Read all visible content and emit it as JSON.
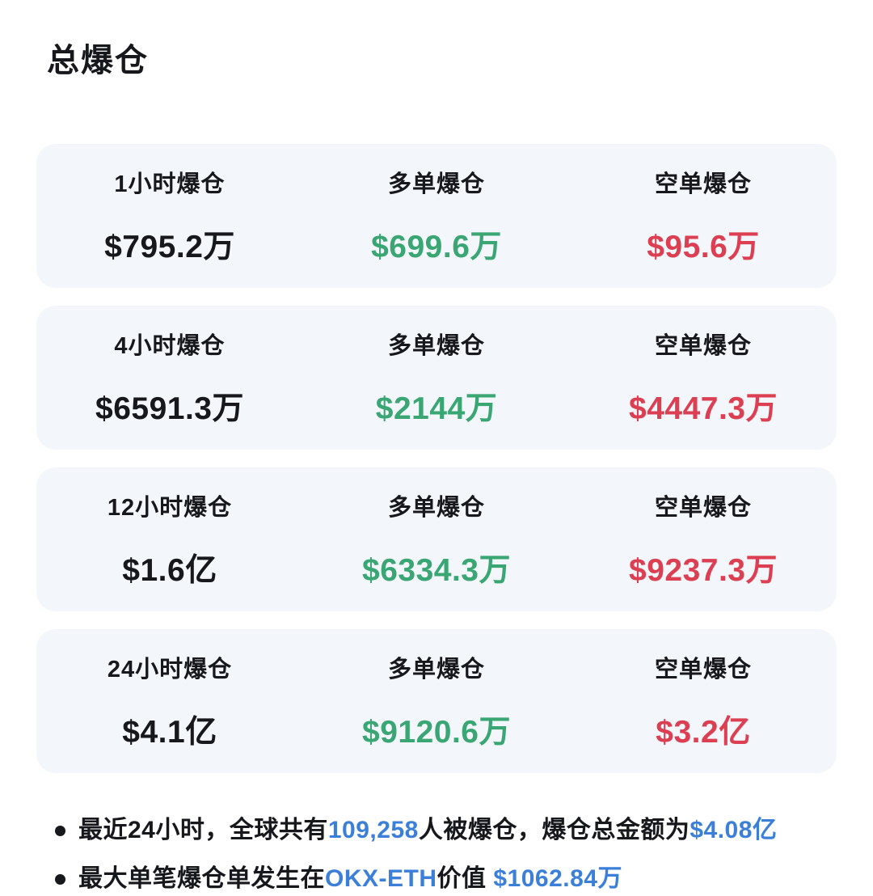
{
  "title": "总爆仓",
  "colors": {
    "long_green": "#3aa673",
    "short_red": "#dc3f52",
    "highlight_blue": "#3b7fd9",
    "card_background": "#f3f6fa",
    "text_dark": "#17181c"
  },
  "cards": [
    {
      "period": {
        "label": "1小时爆仓",
        "value": "$795.2万"
      },
      "long": {
        "label": "多单爆仓",
        "value": "$699.6万"
      },
      "short": {
        "label": "空单爆仓",
        "value": "$95.6万"
      }
    },
    {
      "period": {
        "label": "4小时爆仓",
        "value": "$6591.3万"
      },
      "long": {
        "label": "多单爆仓",
        "value": "$2144万"
      },
      "short": {
        "label": "空单爆仓",
        "value": "$4447.3万"
      }
    },
    {
      "period": {
        "label": "12小时爆仓",
        "value": "$1.6亿"
      },
      "long": {
        "label": "多单爆仓",
        "value": "$6334.3万"
      },
      "short": {
        "label": "空单爆仓",
        "value": "$9237.3万"
      }
    },
    {
      "period": {
        "label": "24小时爆仓",
        "value": "$4.1亿"
      },
      "long": {
        "label": "多单爆仓",
        "value": "$9120.6万"
      },
      "short": {
        "label": "空单爆仓",
        "value": "$3.2亿"
      }
    }
  ],
  "notes": [
    {
      "segments": [
        {
          "text": "最近24小时，全球共有",
          "highlight": false
        },
        {
          "text": "109,258",
          "highlight": true
        },
        {
          "text": "人被爆仓，爆仓总金额为",
          "highlight": false
        },
        {
          "text": "$4.08亿",
          "highlight": true
        }
      ]
    },
    {
      "segments": [
        {
          "text": "最大单笔爆仓单发生在",
          "highlight": false
        },
        {
          "text": "OKX-ETH",
          "highlight": true
        },
        {
          "text": "价值 ",
          "highlight": false
        },
        {
          "text": "$1062.84万",
          "highlight": true
        }
      ]
    }
  ]
}
